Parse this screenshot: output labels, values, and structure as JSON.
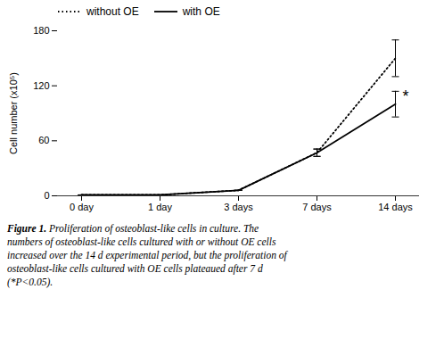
{
  "chart_data": {
    "type": "line",
    "categories": [
      "0 day",
      "1 day",
      "3 days",
      "7 days",
      "14 days"
    ],
    "series": [
      {
        "name": "without OE",
        "color": "black",
        "line_style": "dotted",
        "values": [
          1,
          1,
          6,
          47,
          150
        ],
        "errors": [
          0,
          0,
          0,
          4,
          20
        ]
      },
      {
        "name": "with OE",
        "color": "black",
        "line_style": "solid",
        "values": [
          1,
          1,
          6,
          47,
          100
        ],
        "errors": [
          0,
          0,
          0,
          4,
          14
        ]
      }
    ],
    "ylabel": "Cell number (x10⁵)",
    "ylim": [
      0,
      180
    ],
    "yticks": [
      0,
      60,
      120,
      180
    ],
    "annotations": [
      {
        "text": "*",
        "x": "14 days",
        "y": 108
      }
    ],
    "legend": "upper left",
    "grid": false,
    "caption_title": "Figure 1.",
    "caption": "Proliferation of osteoblast-like cells in culture. The\nnumbers of osteoblast-like cells cultured with or without OE cells\nincreased over the 14 d experimental period, but the proliferation of\nosteoblast-like cells cultured with OE cells plateaued after 7 d\n(*P<0.05)."
  }
}
